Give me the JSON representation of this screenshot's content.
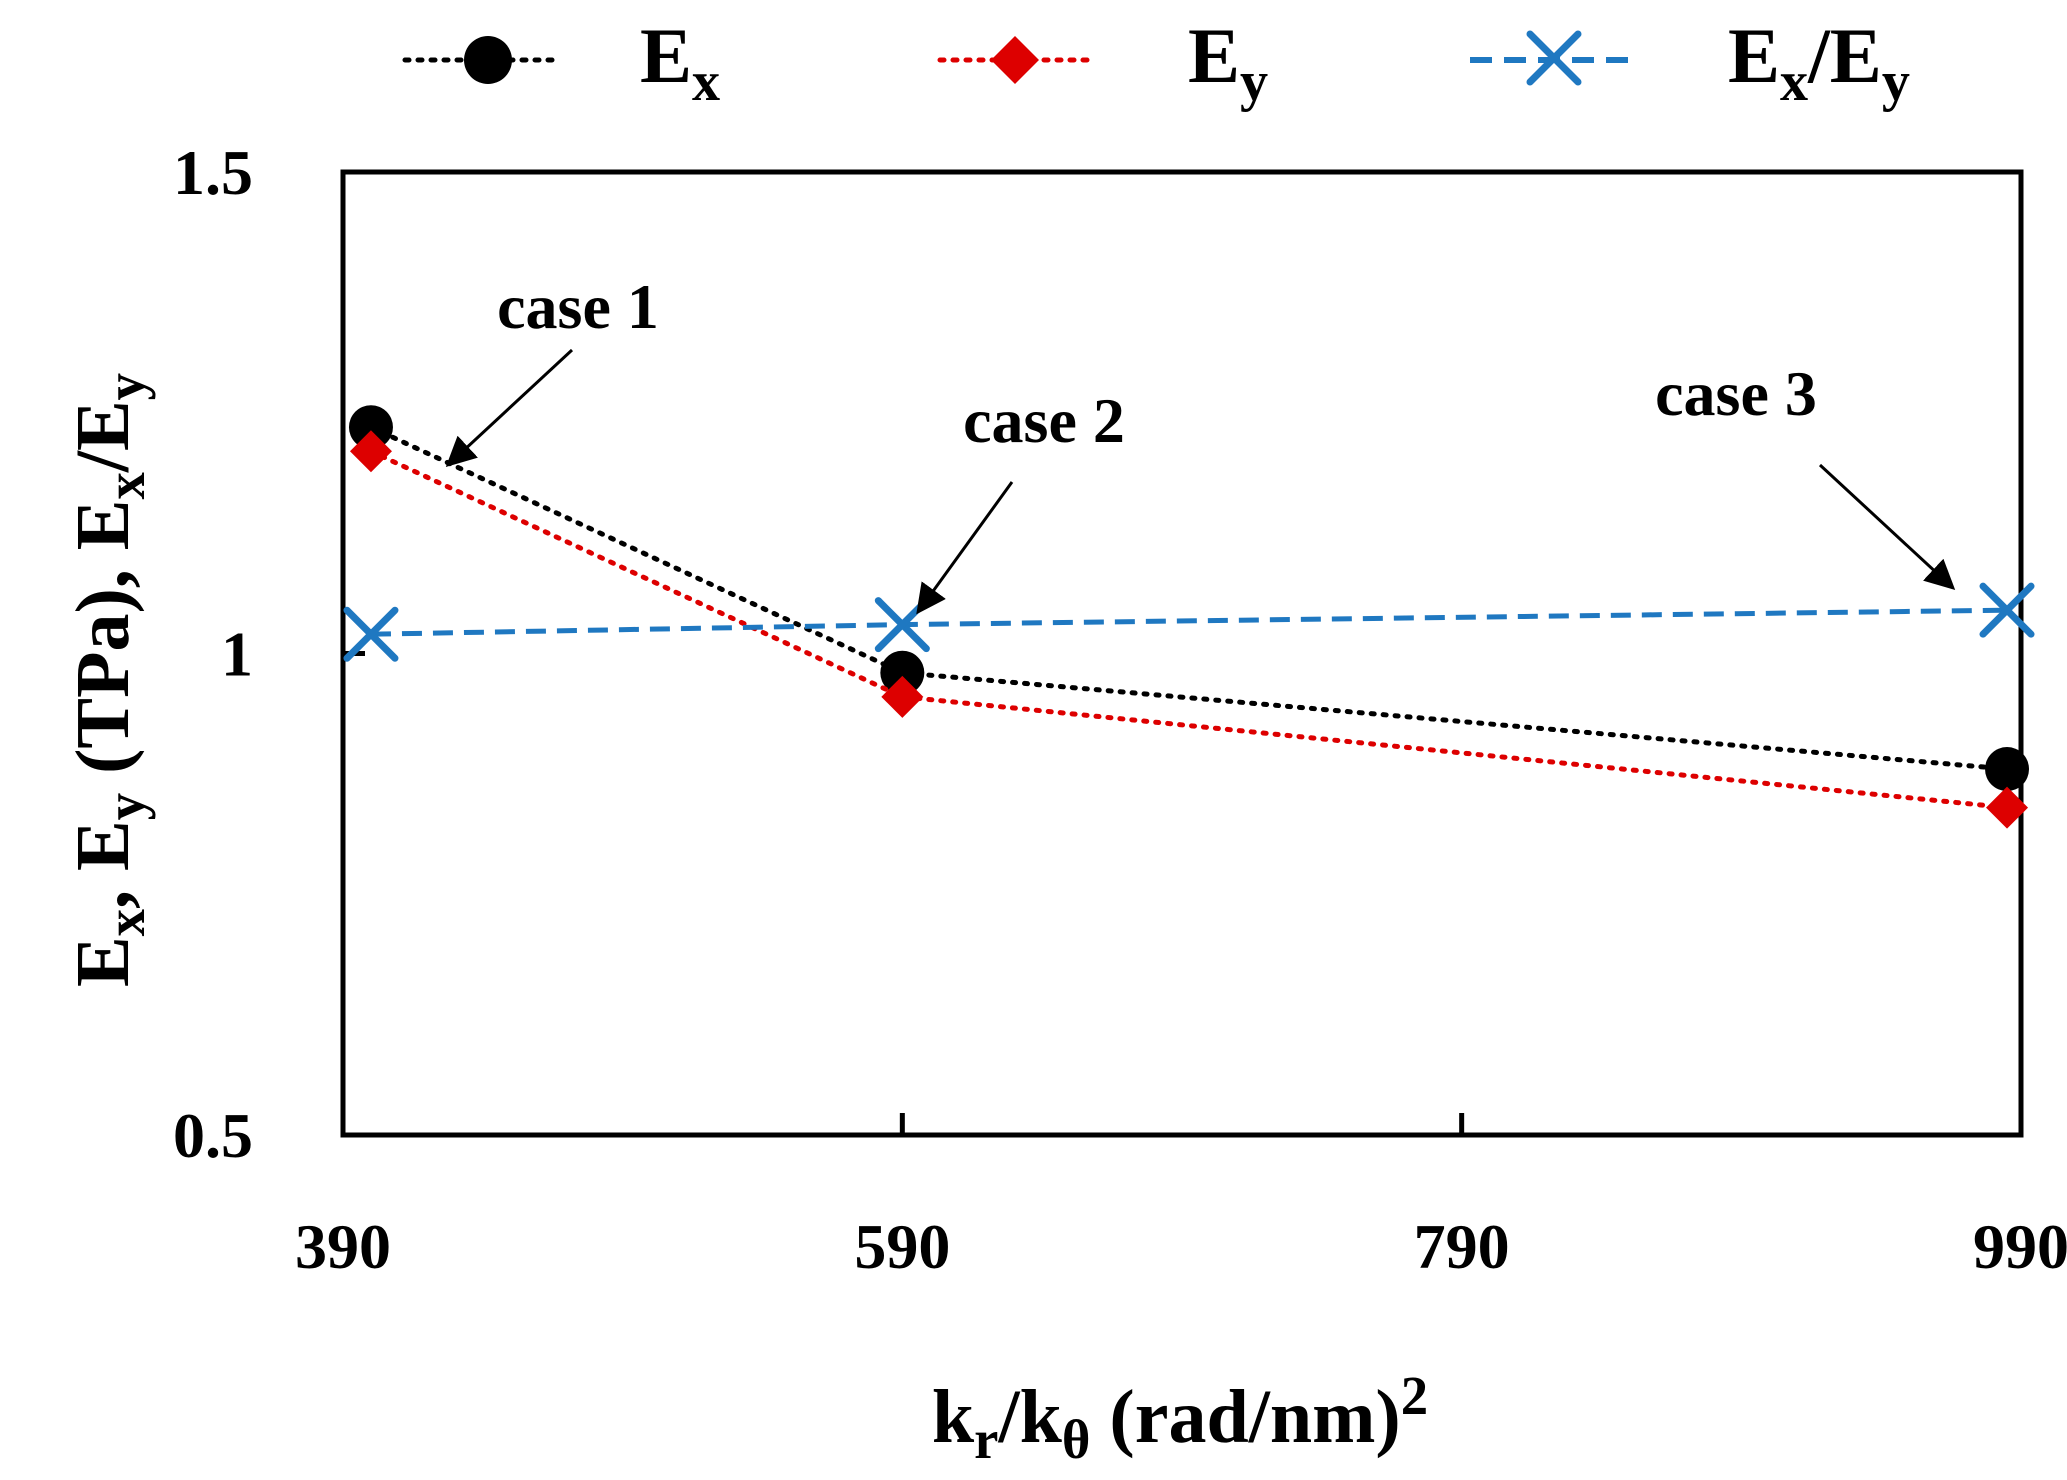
{
  "chart_data": {
    "type": "line",
    "title": "",
    "xlabel": {
      "main": "k",
      "sub1": "r",
      "slash": "/k",
      "sub2": "θ",
      "rest": " (rad/nm)",
      "sup": "2"
    },
    "ylabel": {
      "p1": "E",
      "s1": "x",
      "p2": ", E",
      "s2": "y",
      "p3": " (TPa), E",
      "s3": "x",
      "p4": "/E",
      "s4": "y"
    },
    "xlim": [
      390,
      990
    ],
    "ylim": [
      0.5,
      1.5
    ],
    "x_ticks": [
      390,
      590,
      790,
      990
    ],
    "x_tick_labels": [
      "390",
      "590",
      "790",
      "990"
    ],
    "y_ticks": [
      0.5,
      1,
      1.5
    ],
    "y_tick_labels": [
      "0.5",
      "1",
      "1.5"
    ],
    "grid": false,
    "legend_position": "top",
    "series": [
      {
        "name": "Ex",
        "legend_main": "E",
        "legend_sub": "x",
        "color": "#000000",
        "line_style": "dotted",
        "marker": "circle",
        "x": [
          400,
          590,
          985
        ],
        "y": [
          1.235,
          0.98,
          0.88
        ]
      },
      {
        "name": "Ey",
        "legend_main": "E",
        "legend_sub": "y",
        "color": "#dd0000",
        "line_style": "dotted",
        "marker": "diamond",
        "x": [
          400,
          590,
          985
        ],
        "y": [
          1.21,
          0.955,
          0.84
        ]
      },
      {
        "name": "Ex/Ey",
        "legend_main1": "E",
        "legend_sub1": "x",
        "legend_main2": "/E",
        "legend_sub2": "y",
        "color": "#1f78c1",
        "line_style": "dashed",
        "marker": "x",
        "x": [
          400,
          590,
          985
        ],
        "y": [
          1.02,
          1.03,
          1.045
        ]
      }
    ],
    "annotations": [
      {
        "label": "case 1",
        "target_x": 400,
        "target_y": 1.235
      },
      {
        "label": "case 2",
        "target_x": 590,
        "target_y": 1.03
      },
      {
        "label": "case 3",
        "target_x": 985,
        "target_y": 1.045
      }
    ]
  }
}
